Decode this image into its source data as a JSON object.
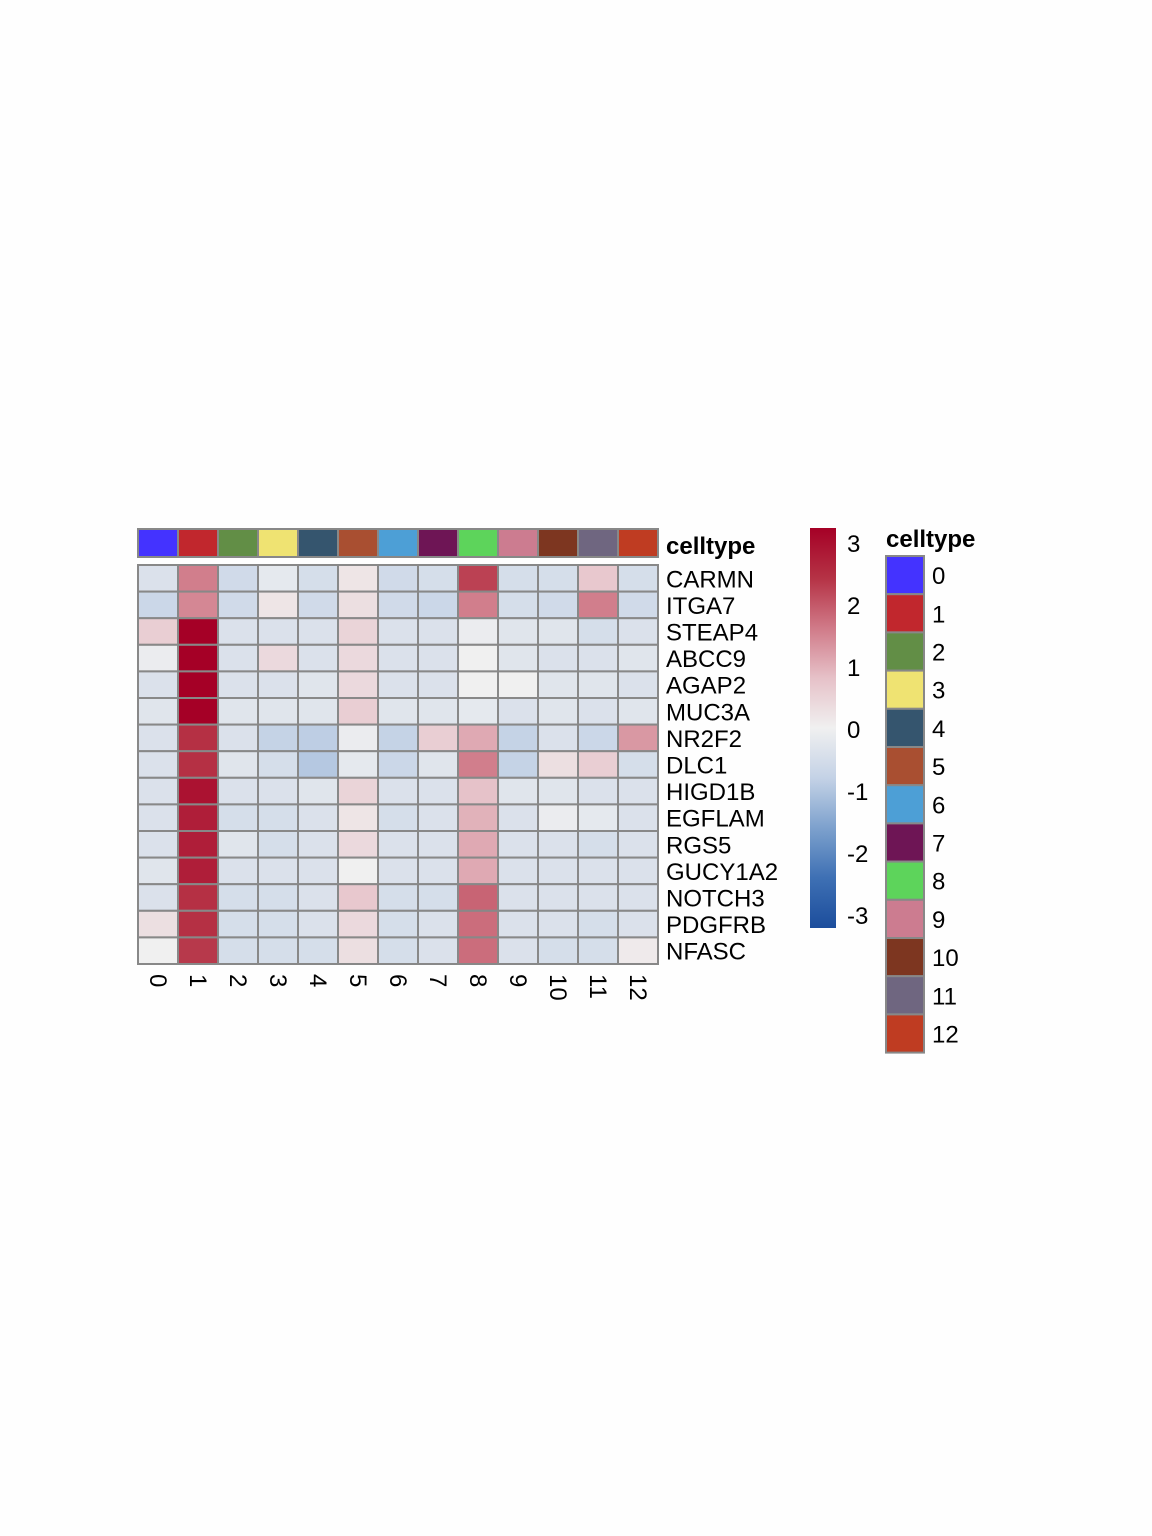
{
  "chart_data": {
    "type": "heatmap",
    "annotation_label": "celltype",
    "legend_title": "celltype",
    "columns": [
      "0",
      "1",
      "2",
      "3",
      "4",
      "5",
      "6",
      "7",
      "8",
      "9",
      "10",
      "11",
      "12"
    ],
    "rows": [
      "CARMN",
      "ITGA7",
      "STEAP4",
      "ABCC9",
      "AGAP2",
      "MUC3A",
      "NR2F2",
      "DLC1",
      "HIGD1B",
      "EGFLAM",
      "RGS5",
      "GUCY1A2",
      "NOTCH3",
      "PDGFRB",
      "NFASC"
    ],
    "values": [
      [
        -0.4,
        1.6,
        -0.6,
        -0.2,
        -0.5,
        0.2,
        -0.6,
        -0.5,
        2.3,
        -0.5,
        -0.5,
        0.7,
        -0.5
      ],
      [
        -0.7,
        1.5,
        -0.6,
        0.2,
        -0.6,
        0.3,
        -0.6,
        -0.7,
        1.6,
        -0.5,
        -0.6,
        1.6,
        -0.6
      ],
      [
        0.6,
        3.3,
        -0.4,
        -0.4,
        -0.4,
        0.5,
        -0.4,
        -0.4,
        -0.1,
        -0.3,
        -0.3,
        -0.5,
        -0.4
      ],
      [
        -0.1,
        3.3,
        -0.4,
        0.4,
        -0.4,
        0.4,
        -0.4,
        -0.4,
        0.0,
        -0.3,
        -0.4,
        -0.4,
        -0.3
      ],
      [
        -0.4,
        3.3,
        -0.4,
        -0.4,
        -0.3,
        0.4,
        -0.4,
        -0.4,
        0.0,
        0.0,
        -0.3,
        -0.3,
        -0.4
      ],
      [
        -0.3,
        3.3,
        -0.3,
        -0.3,
        -0.3,
        0.6,
        -0.3,
        -0.3,
        -0.2,
        -0.4,
        -0.3,
        -0.4,
        -0.3
      ],
      [
        -0.4,
        2.5,
        -0.4,
        -0.8,
        -0.9,
        -0.1,
        -0.8,
        0.6,
        1.1,
        -0.8,
        -0.4,
        -0.7,
        1.3
      ],
      [
        -0.4,
        2.5,
        -0.3,
        -0.5,
        -1.0,
        -0.2,
        -0.7,
        -0.3,
        1.6,
        -0.8,
        0.3,
        0.6,
        -0.5
      ],
      [
        -0.4,
        3.0,
        -0.4,
        -0.4,
        -0.3,
        0.5,
        -0.4,
        -0.4,
        0.8,
        -0.3,
        -0.3,
        -0.4,
        -0.4
      ],
      [
        -0.4,
        2.8,
        -0.5,
        -0.5,
        -0.4,
        0.2,
        -0.5,
        -0.4,
        1.0,
        -0.4,
        -0.1,
        -0.2,
        -0.4
      ],
      [
        -0.4,
        2.8,
        -0.3,
        -0.5,
        -0.4,
        0.4,
        -0.4,
        -0.4,
        1.1,
        -0.4,
        -0.4,
        -0.5,
        -0.4
      ],
      [
        -0.3,
        2.8,
        -0.4,
        -0.4,
        -0.4,
        0.0,
        -0.4,
        -0.4,
        1.1,
        -0.4,
        -0.4,
        -0.4,
        -0.4
      ],
      [
        -0.4,
        2.5,
        -0.5,
        -0.5,
        -0.4,
        0.7,
        -0.5,
        -0.5,
        1.9,
        -0.4,
        -0.4,
        -0.4,
        -0.4
      ],
      [
        0.3,
        2.5,
        -0.5,
        -0.5,
        -0.4,
        0.4,
        -0.5,
        -0.4,
        1.8,
        -0.4,
        -0.4,
        -0.5,
        -0.4
      ],
      [
        0.0,
        2.4,
        -0.5,
        -0.5,
        -0.5,
        0.3,
        -0.5,
        -0.4,
        1.8,
        -0.4,
        -0.5,
        -0.5,
        0.1
      ]
    ],
    "annotation_colors": [
      "#4433ff",
      "#c1272d",
      "#628e46",
      "#efe372",
      "#35556e",
      "#a94f31",
      "#4d9fd6",
      "#6e1555",
      "#5dd45b",
      "#cc7c90",
      "#7d3620",
      "#6f6680",
      "#bf3c22"
    ],
    "color_scale": {
      "min": -3.3,
      "max": 3.3,
      "stops": [
        "#1c4d9c",
        "#3e70b4",
        "#7da1cd",
        "#c4d2e6",
        "#f0f0f0",
        "#e6c1c8",
        "#d07a88",
        "#b53245",
        "#a50026"
      ],
      "ticks": [
        "3",
        "2",
        "1",
        "0",
        "-1",
        "-2",
        "-3"
      ]
    },
    "legend_entries": [
      "0",
      "1",
      "2",
      "3",
      "4",
      "5",
      "6",
      "7",
      "8",
      "9",
      "10",
      "11",
      "12"
    ]
  }
}
